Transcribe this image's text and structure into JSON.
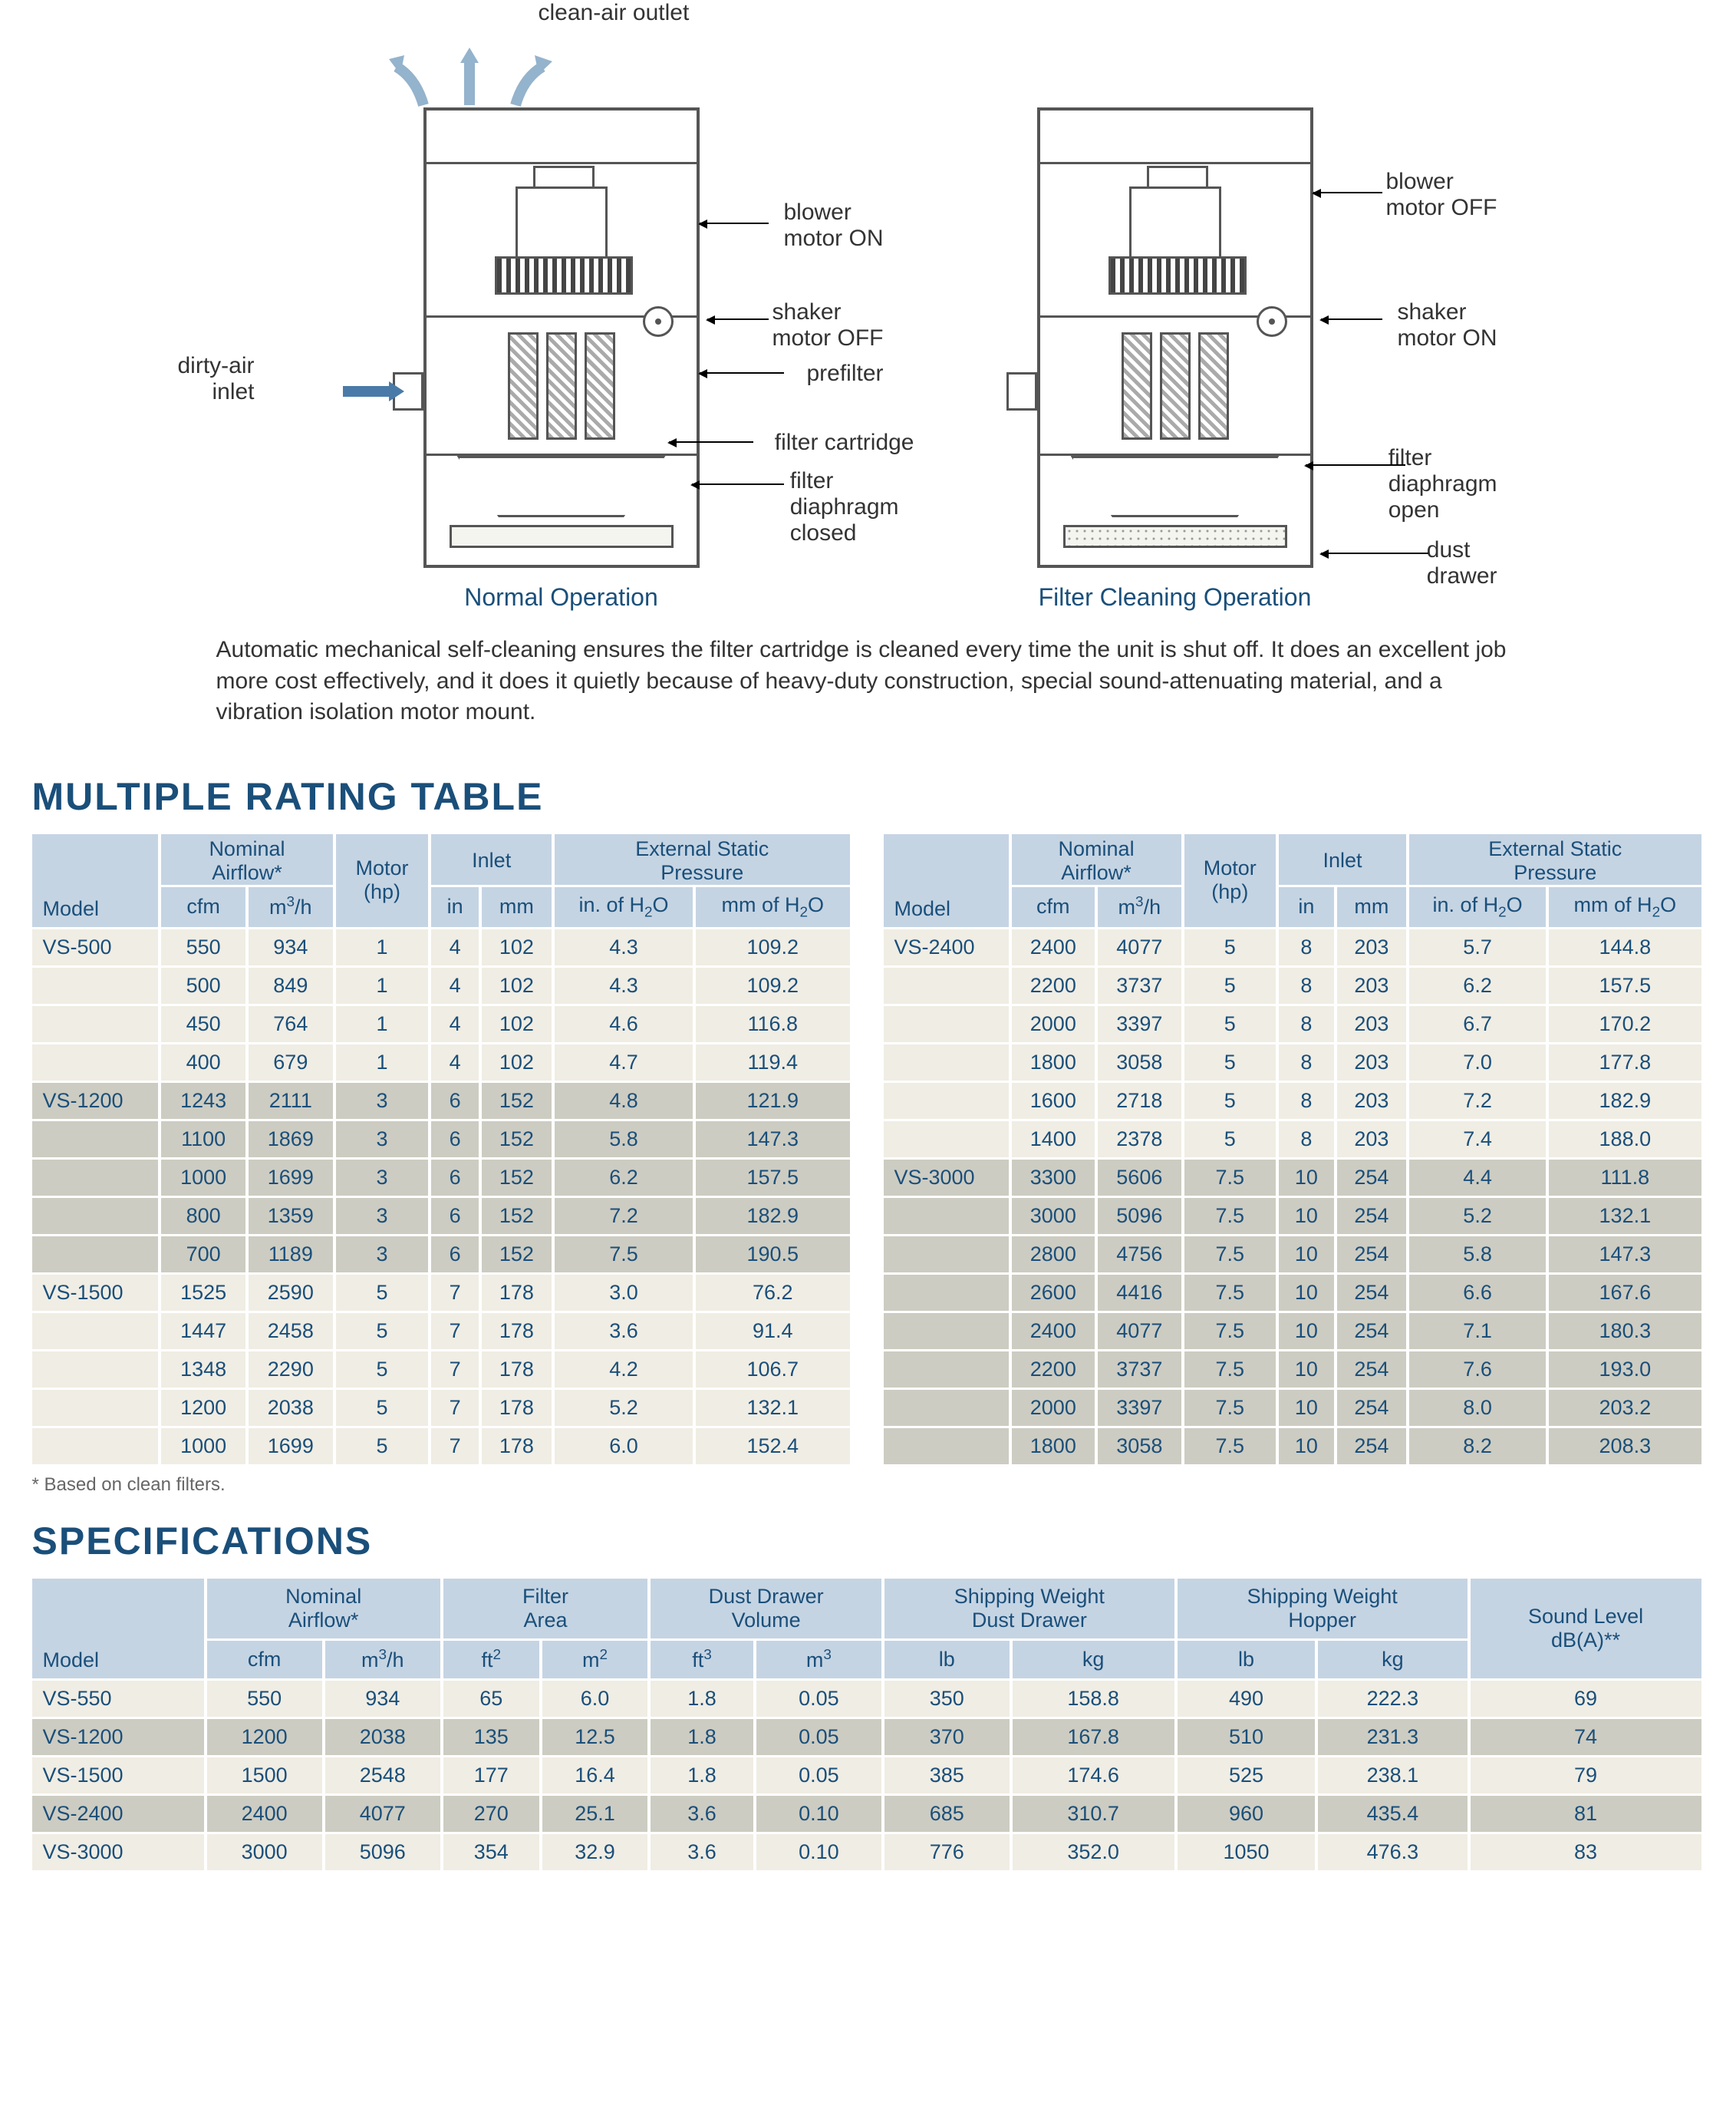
{
  "diagram": {
    "clean_air_label": "clean-air outlet",
    "dirty_air_label": "dirty-air\ninlet",
    "left": {
      "caption": "Normal Operation",
      "labels": {
        "blower": "blower\nmotor ON",
        "shaker": "shaker\nmotor OFF",
        "prefilter": "prefilter",
        "cartridge": "filter cartridge",
        "diaphragm": "filter\ndiaphragm\nclosed"
      }
    },
    "right": {
      "caption": "Filter Cleaning Operation",
      "labels": {
        "blower": "blower\nmotor OFF",
        "shaker": "shaker\nmotor ON",
        "diaphragm": "filter\ndiaphragm\nopen",
        "dust": "dust\ndrawer"
      }
    },
    "description": "Automatic mechanical self-cleaning ensures the filter cartridge is cleaned every time the unit is shut off. It does an excellent job more cost effectively, and it does it quietly because of heavy-duty construction, special sound-attenuating material, and a vibration isolation motor mount."
  },
  "rating": {
    "title": "MULTIPLE RATING TABLE",
    "footnote": "*   Based on clean filters.",
    "header_groups": {
      "airflow": "Nominal\nAirflow*",
      "motor": "Motor\n(hp)",
      "inlet": "Inlet",
      "esp": "External Static\nPressure"
    },
    "sub_headers": {
      "model": "Model",
      "cfm": "cfm",
      "m3h_html": "m<sup>3</sup>/h",
      "in": "in",
      "mm": "mm",
      "inh2o_html": "in. of H<sub>2</sub>O",
      "mmh2o_html": "mm of H<sub>2</sub>O"
    },
    "left_rows": [
      {
        "m": "VS-500",
        "cfm": 550,
        "m3h": 934,
        "hp": 1,
        "in": 4,
        "mm": 102,
        "inH2O": 4.3,
        "mmH2O": 109.2,
        "grp": 0
      },
      {
        "m": "",
        "cfm": 500,
        "m3h": 849,
        "hp": 1,
        "in": 4,
        "mm": 102,
        "inH2O": 4.3,
        "mmH2O": 109.2,
        "grp": 0
      },
      {
        "m": "",
        "cfm": 450,
        "m3h": 764,
        "hp": 1,
        "in": 4,
        "mm": 102,
        "inH2O": 4.6,
        "mmH2O": 116.8,
        "grp": 0
      },
      {
        "m": "",
        "cfm": 400,
        "m3h": 679,
        "hp": 1,
        "in": 4,
        "mm": 102,
        "inH2O": 4.7,
        "mmH2O": 119.4,
        "grp": 0
      },
      {
        "m": "VS-1200",
        "cfm": 1243,
        "m3h": 2111,
        "hp": 3,
        "in": 6,
        "mm": 152,
        "inH2O": 4.8,
        "mmH2O": 121.9,
        "grp": 1
      },
      {
        "m": "",
        "cfm": 1100,
        "m3h": 1869,
        "hp": 3,
        "in": 6,
        "mm": 152,
        "inH2O": 5.8,
        "mmH2O": 147.3,
        "grp": 1
      },
      {
        "m": "",
        "cfm": 1000,
        "m3h": 1699,
        "hp": 3,
        "in": 6,
        "mm": 152,
        "inH2O": 6.2,
        "mmH2O": 157.5,
        "grp": 1
      },
      {
        "m": "",
        "cfm": 800,
        "m3h": 1359,
        "hp": 3,
        "in": 6,
        "mm": 152,
        "inH2O": 7.2,
        "mmH2O": 182.9,
        "grp": 1
      },
      {
        "m": "",
        "cfm": 700,
        "m3h": 1189,
        "hp": 3,
        "in": 6,
        "mm": 152,
        "inH2O": 7.5,
        "mmH2O": 190.5,
        "grp": 1
      },
      {
        "m": "VS-1500",
        "cfm": 1525,
        "m3h": 2590,
        "hp": 5,
        "in": 7,
        "mm": 178,
        "inH2O": "3.0",
        "mmH2O": 76.2,
        "grp": 0
      },
      {
        "m": "",
        "cfm": 1447,
        "m3h": 2458,
        "hp": 5,
        "in": 7,
        "mm": 178,
        "inH2O": 3.6,
        "mmH2O": 91.4,
        "grp": 0
      },
      {
        "m": "",
        "cfm": 1348,
        "m3h": 2290,
        "hp": 5,
        "in": 7,
        "mm": 178,
        "inH2O": 4.2,
        "mmH2O": 106.7,
        "grp": 0
      },
      {
        "m": "",
        "cfm": 1200,
        "m3h": 2038,
        "hp": 5,
        "in": 7,
        "mm": 178,
        "inH2O": 5.2,
        "mmH2O": 132.1,
        "grp": 0
      },
      {
        "m": "",
        "cfm": 1000,
        "m3h": 1699,
        "hp": 5,
        "in": 7,
        "mm": 178,
        "inH2O": "6.0",
        "mmH2O": 152.4,
        "grp": 0
      }
    ],
    "right_rows": [
      {
        "m": "VS-2400",
        "cfm": 2400,
        "m3h": 4077,
        "hp": 5,
        "in": 8,
        "mm": 203,
        "inH2O": 5.7,
        "mmH2O": 144.8,
        "grp": 0
      },
      {
        "m": "",
        "cfm": 2200,
        "m3h": 3737,
        "hp": 5,
        "in": 8,
        "mm": 203,
        "inH2O": 6.2,
        "mmH2O": 157.5,
        "grp": 0
      },
      {
        "m": "",
        "cfm": 2000,
        "m3h": 3397,
        "hp": 5,
        "in": 8,
        "mm": 203,
        "inH2O": 6.7,
        "mmH2O": 170.2,
        "grp": 0
      },
      {
        "m": "",
        "cfm": 1800,
        "m3h": 3058,
        "hp": 5,
        "in": 8,
        "mm": 203,
        "inH2O": "7.0",
        "mmH2O": 177.8,
        "grp": 0
      },
      {
        "m": "",
        "cfm": 1600,
        "m3h": 2718,
        "hp": 5,
        "in": 8,
        "mm": 203,
        "inH2O": 7.2,
        "mmH2O": 182.9,
        "grp": 0
      },
      {
        "m": "",
        "cfm": 1400,
        "m3h": 2378,
        "hp": 5,
        "in": 8,
        "mm": 203,
        "inH2O": 7.4,
        "mmH2O": "188.0",
        "grp": 0
      },
      {
        "m": "VS-3000",
        "cfm": 3300,
        "m3h": 5606,
        "hp": 7.5,
        "in": 10,
        "mm": 254,
        "inH2O": 4.4,
        "mmH2O": 111.8,
        "grp": 1
      },
      {
        "m": "",
        "cfm": 3000,
        "m3h": 5096,
        "hp": 7.5,
        "in": 10,
        "mm": 254,
        "inH2O": 5.2,
        "mmH2O": 132.1,
        "grp": 1
      },
      {
        "m": "",
        "cfm": 2800,
        "m3h": 4756,
        "hp": 7.5,
        "in": 10,
        "mm": 254,
        "inH2O": 5.8,
        "mmH2O": 147.3,
        "grp": 1
      },
      {
        "m": "",
        "cfm": 2600,
        "m3h": 4416,
        "hp": 7.5,
        "in": 10,
        "mm": 254,
        "inH2O": 6.6,
        "mmH2O": 167.6,
        "grp": 1
      },
      {
        "m": "",
        "cfm": 2400,
        "m3h": 4077,
        "hp": 7.5,
        "in": 10,
        "mm": 254,
        "inH2O": 7.1,
        "mmH2O": 180.3,
        "grp": 1
      },
      {
        "m": "",
        "cfm": 2200,
        "m3h": 3737,
        "hp": 7.5,
        "in": 10,
        "mm": 254,
        "inH2O": 7.6,
        "mmH2O": "193.0",
        "grp": 1
      },
      {
        "m": "",
        "cfm": 2000,
        "m3h": 3397,
        "hp": 7.5,
        "in": 10,
        "mm": 254,
        "inH2O": "8.0",
        "mmH2O": 203.2,
        "grp": 1
      },
      {
        "m": "",
        "cfm": 1800,
        "m3h": 3058,
        "hp": 7.5,
        "in": 10,
        "mm": 254,
        "inH2O": 8.2,
        "mmH2O": 208.3,
        "grp": 1
      }
    ]
  },
  "specs": {
    "title": "SPECIFICATIONS",
    "header_groups": {
      "airflow": "Nominal\nAirflow*",
      "filter": "Filter\nArea",
      "dust": "Dust Drawer\nVolume",
      "ship_d": "Shipping Weight\nDust Drawer",
      "ship_h": "Shipping Weight\nHopper",
      "sound_html": "Sound Level\ndB(A)**"
    },
    "sub_headers": {
      "model": "Model",
      "cfm": "cfm",
      "m3h_html": "m<sup>3</sup>/h",
      "ft2_html": "ft<sup>2</sup>",
      "m2_html": "m<sup>2</sup>",
      "ft3_html": "ft<sup>3</sup>",
      "m3_html": "m<sup>3</sup>",
      "lb": "lb",
      "kg": "kg"
    },
    "rows": [
      {
        "m": "VS-550",
        "cfm": 550,
        "m3h": 934,
        "ft2": 65,
        "m2": "6.0",
        "ft3": 1.8,
        "m3": "0.05",
        "dlb": 350,
        "dkg": 158.8,
        "hlb": 490,
        "hkg": 222.3,
        "db": 69
      },
      {
        "m": "VS-1200",
        "cfm": 1200,
        "m3h": 2038,
        "ft2": 135,
        "m2": 12.5,
        "ft3": 1.8,
        "m3": "0.05",
        "dlb": 370,
        "dkg": 167.8,
        "hlb": 510,
        "hkg": 231.3,
        "db": 74
      },
      {
        "m": "VS-1500",
        "cfm": 1500,
        "m3h": 2548,
        "ft2": 177,
        "m2": 16.4,
        "ft3": 1.8,
        "m3": "0.05",
        "dlb": 385,
        "dkg": 174.6,
        "hlb": 525,
        "hkg": 238.1,
        "db": 79
      },
      {
        "m": "VS-2400",
        "cfm": 2400,
        "m3h": 4077,
        "ft2": 270,
        "m2": 25.1,
        "ft3": 3.6,
        "m3": "0.10",
        "dlb": 685,
        "dkg": 310.7,
        "hlb": 960,
        "hkg": 435.4,
        "db": 81
      },
      {
        "m": "VS-3000",
        "cfm": 3000,
        "m3h": 5096,
        "ft2": 354,
        "m2": 32.9,
        "ft3": 3.6,
        "m3": "0.10",
        "dlb": 776,
        "dkg": "352.0",
        "hlb": 1050,
        "hkg": 476.3,
        "db": 83
      }
    ]
  },
  "colors": {
    "heading": "#1a4f7a",
    "th_bg": "#c5d4e3",
    "row_light": "#f0ede4",
    "row_dark": "#cdccc2",
    "cell_text": "#1a4f7a"
  }
}
